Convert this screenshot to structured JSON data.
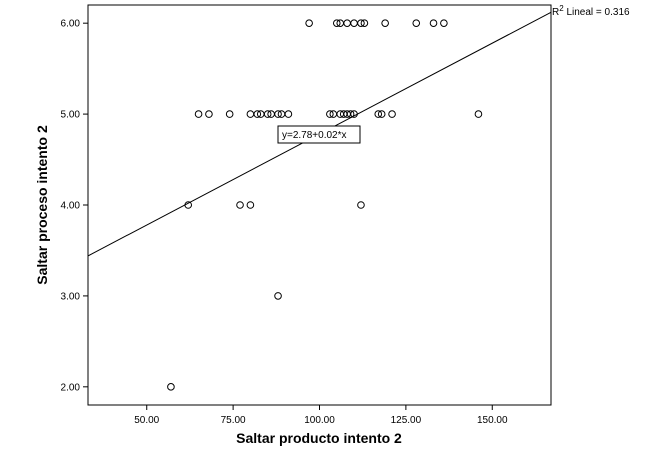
{
  "chart_data": {
    "type": "scatter",
    "xlabel": "Saltar producto intento 2",
    "ylabel": "Saltar proceso intento 2",
    "xlim": [
      33,
      167
    ],
    "ylim": [
      1.8,
      6.2
    ],
    "x_ticks": [
      "50.00",
      "75.00",
      "100.00",
      "125.00",
      "150.00"
    ],
    "x_tick_values": [
      50,
      75,
      100,
      125,
      150
    ],
    "y_ticks": [
      "2.00",
      "3.00",
      "4.00",
      "5.00",
      "6.00"
    ],
    "y_tick_values": [
      2,
      3,
      4,
      5,
      6
    ],
    "grid": false,
    "fit_line": {
      "intercept": 2.78,
      "slope": 0.02,
      "label": "y=2.78+0.02*x"
    },
    "r2": {
      "prefix": "R",
      "superscript": "2",
      "label": " Lineal = 0.316"
    },
    "points": [
      {
        "x": 57,
        "y": 2
      },
      {
        "x": 88,
        "y": 3
      },
      {
        "x": 62,
        "y": 4
      },
      {
        "x": 77,
        "y": 4
      },
      {
        "x": 80,
        "y": 4
      },
      {
        "x": 112,
        "y": 4
      },
      {
        "x": 65,
        "y": 5
      },
      {
        "x": 68,
        "y": 5
      },
      {
        "x": 74,
        "y": 5
      },
      {
        "x": 80,
        "y": 5
      },
      {
        "x": 82,
        "y": 5
      },
      {
        "x": 83,
        "y": 5
      },
      {
        "x": 85,
        "y": 5
      },
      {
        "x": 86,
        "y": 5
      },
      {
        "x": 88,
        "y": 5
      },
      {
        "x": 89,
        "y": 5
      },
      {
        "x": 91,
        "y": 5
      },
      {
        "x": 103,
        "y": 5
      },
      {
        "x": 104,
        "y": 5
      },
      {
        "x": 106,
        "y": 5
      },
      {
        "x": 107,
        "y": 5
      },
      {
        "x": 108,
        "y": 5
      },
      {
        "x": 109,
        "y": 5
      },
      {
        "x": 110,
        "y": 5
      },
      {
        "x": 117,
        "y": 5
      },
      {
        "x": 118,
        "y": 5
      },
      {
        "x": 121,
        "y": 5
      },
      {
        "x": 146,
        "y": 5
      },
      {
        "x": 97,
        "y": 6
      },
      {
        "x": 105,
        "y": 6
      },
      {
        "x": 106,
        "y": 6
      },
      {
        "x": 108,
        "y": 6
      },
      {
        "x": 110,
        "y": 6
      },
      {
        "x": 112,
        "y": 6
      },
      {
        "x": 113,
        "y": 6
      },
      {
        "x": 119,
        "y": 6
      },
      {
        "x": 128,
        "y": 6
      },
      {
        "x": 133,
        "y": 6
      },
      {
        "x": 136,
        "y": 6
      }
    ]
  }
}
